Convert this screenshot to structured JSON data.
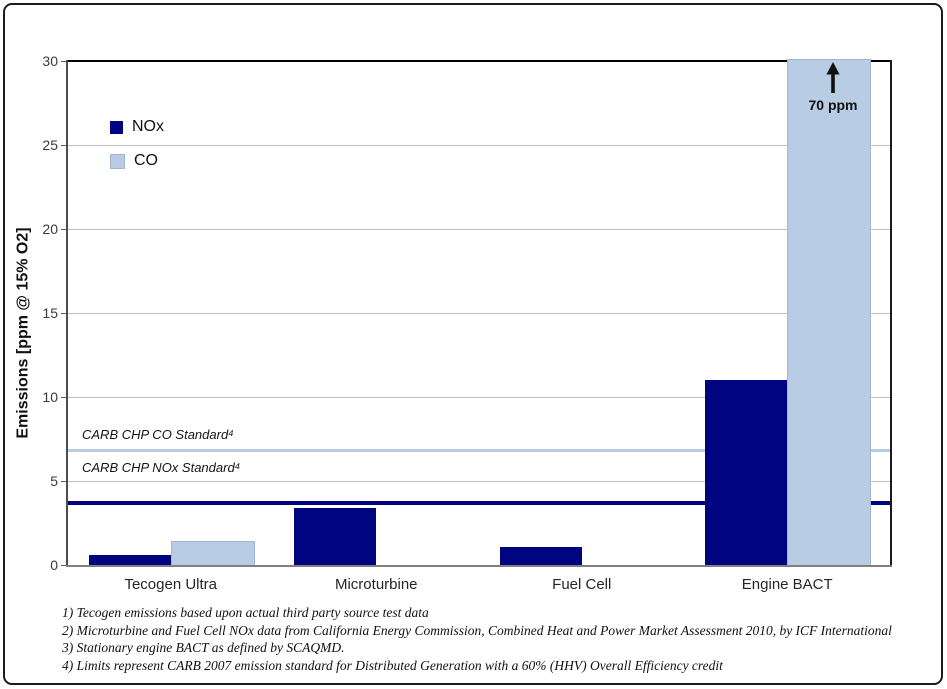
{
  "chart_data": {
    "type": "bar",
    "title": "",
    "ylabel": "Emissions [ppm @ 15% O2]",
    "xlabel": "",
    "categories": [
      "Tecogen Ultra",
      "Microturbine",
      "Fuel Cell",
      "Engine BACT"
    ],
    "series": [
      {
        "name": "NOx",
        "color": "#010480",
        "values": [
          0.6,
          3.4,
          1.1,
          11
        ]
      },
      {
        "name": "CO",
        "color": "#b8cce4",
        "border_color": "#9fb6d4",
        "values": [
          1.4,
          0,
          0,
          70
        ]
      }
    ],
    "ylim": [
      0,
      30
    ],
    "ytick_step": 5,
    "ytick_labels": [
      "0",
      "5",
      "10",
      "15",
      "20",
      "25",
      "30"
    ],
    "grid": true,
    "gridline_color": "#bfbfbf",
    "legend_position": "top-left-inside",
    "reference_lines": [
      {
        "label": "CARB CHP CO Standard⁴",
        "value": 6.8,
        "color": "#b8cce4",
        "thickness": 3
      },
      {
        "label": "CARB CHP NOx Standard⁴",
        "value": 3.7,
        "color": "#010480",
        "thickness": 4
      }
    ],
    "annotations": [
      {
        "text": "70 ppm",
        "icon": "up-arrow",
        "target": "Engine BACT CO bar",
        "note": "bar clipped at axis max 30, actual value 70 ppm"
      }
    ]
  },
  "legend": {
    "items": [
      {
        "label": "NOx",
        "color": "#010480"
      },
      {
        "label": "CO",
        "color": "#b8cce4"
      }
    ]
  },
  "footnotes": {
    "lines": [
      "1) Tecogen emissions based upon actual third party source test data",
      "2) Microturbine and Fuel Cell NOx data from California Energy Commission, Combined Heat and Power Market Assessment 2010, by ICF International",
      "3) Stationary engine BACT as defined by SCAQMD.",
      "4) Limits represent CARB 2007 emission standard for Distributed Generation with a 60% (HHV)  Overall Efficiency credit"
    ]
  }
}
